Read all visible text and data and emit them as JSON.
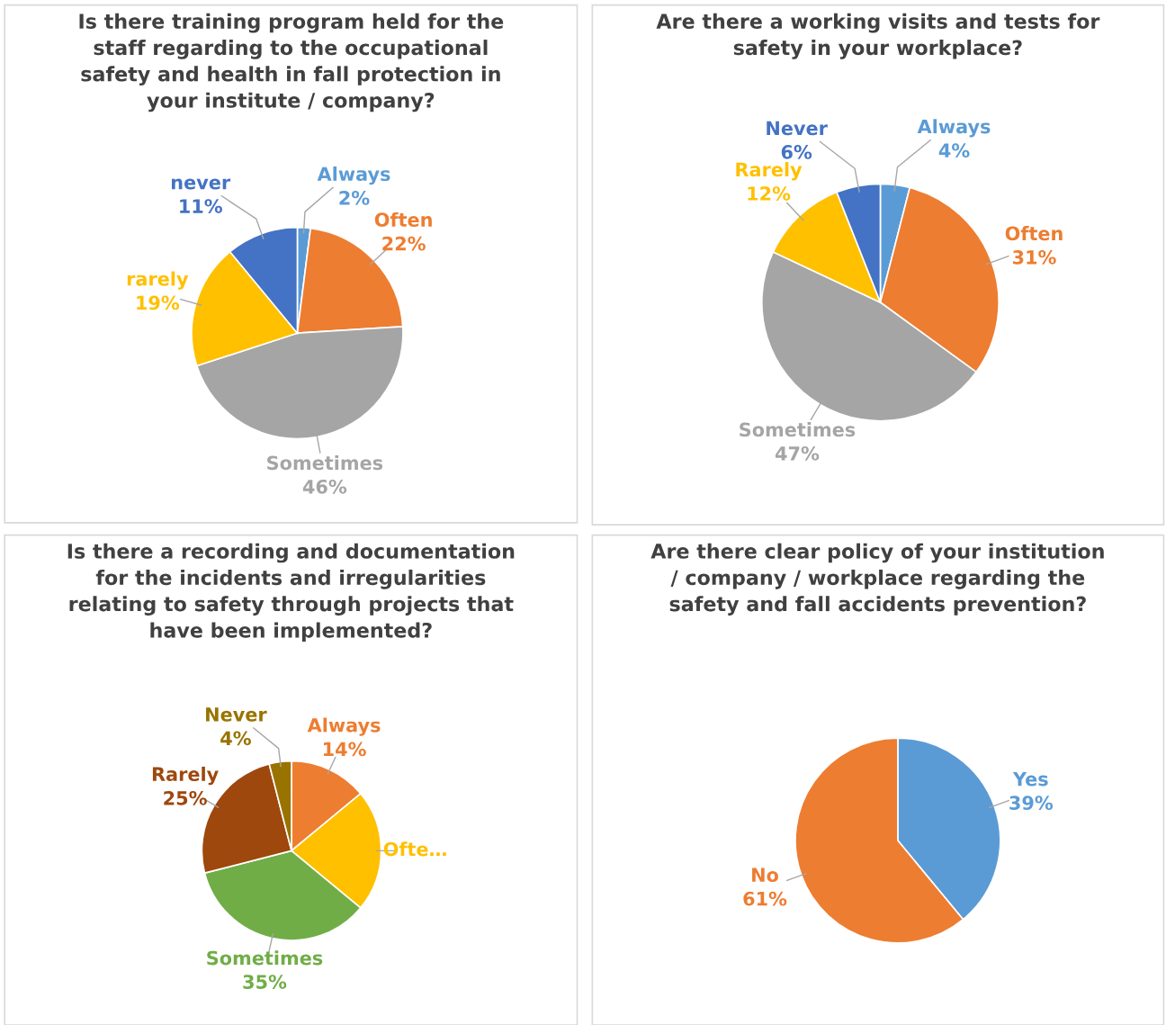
{
  "chart_data": [
    {
      "type": "pie",
      "title": "Is there training program held for the\nstaff regarding to the occupational\nsafety and health in fall protection in\nyour institute / company?",
      "categories": [
        "Always",
        "Often",
        "Sometimes",
        "rarely",
        "never"
      ],
      "values": [
        2,
        22,
        46,
        19,
        11
      ],
      "value_labels": [
        "2%",
        "22%",
        "46%",
        "19%",
        "11%"
      ],
      "colors": [
        "#5b9bd5",
        "#ed7d31",
        "#a5a5a5",
        "#ffc000",
        "#4472c4"
      ],
      "legend": false
    },
    {
      "type": "pie",
      "title": "Are there a working visits and tests for\nsafety in your workplace?",
      "categories": [
        "Always",
        "Often",
        "Sometimes",
        "Rarely",
        "Never"
      ],
      "values": [
        4,
        31,
        47,
        12,
        6
      ],
      "value_labels": [
        "4%",
        "31%",
        "47%",
        "12%",
        "6%"
      ],
      "colors": [
        "#5b9bd5",
        "#ed7d31",
        "#a5a5a5",
        "#ffc000",
        "#4472c4"
      ],
      "legend": false
    },
    {
      "type": "pie",
      "title": "Is there a recording and documentation\nfor the incidents and irregularities\nrelating to safety through projects that\nhave been implemented?",
      "categories": [
        "Always",
        "Ofte…",
        "Sometimes",
        "Rarely",
        "Never"
      ],
      "values": [
        14,
        22,
        35,
        25,
        4
      ],
      "value_labels": [
        "14%",
        null,
        "35%",
        "25%",
        "4%"
      ],
      "colors": [
        "#ed7d31",
        "#ffc000",
        "#70ad47",
        "#9e480e",
        "#997300"
      ],
      "legend": false
    },
    {
      "type": "pie",
      "title": "Are there clear policy of your institution\n/ company / workplace regarding the\nsafety and fall accidents prevention?",
      "categories": [
        "Yes",
        "No"
      ],
      "values": [
        39,
        61
      ],
      "value_labels": [
        "39%",
        "61%"
      ],
      "colors": [
        "#5b9bd5",
        "#ed7d31"
      ],
      "legend": false
    }
  ]
}
